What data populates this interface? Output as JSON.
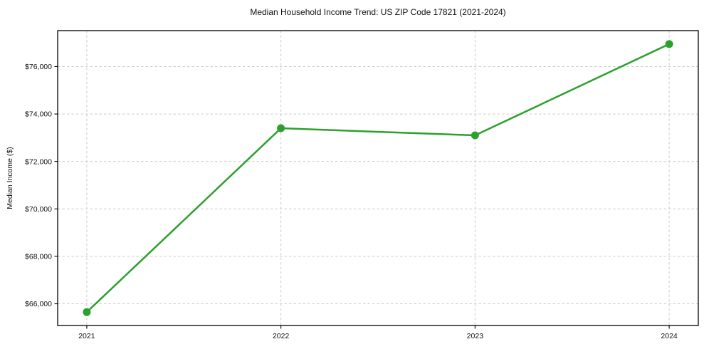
{
  "chart_data": {
    "type": "line",
    "title": "Median Household Income Trend: US ZIP Code 17821 (2021-2024)",
    "xlabel": "",
    "ylabel": "Median Income ($)",
    "series_name": "Median Household Income",
    "x": [
      2021,
      2022,
      2023,
      2024
    ],
    "values": [
      65650,
      73400,
      73100,
      76950
    ],
    "xticks": [
      2021,
      2022,
      2023,
      2024
    ],
    "xtick_labels": [
      "2021",
      "2022",
      "2023",
      "2024"
    ],
    "yticks": [
      66000,
      68000,
      70000,
      72000,
      74000,
      76000
    ],
    "ytick_labels": [
      "$66,000",
      "$68,000",
      "$70,000",
      "$72,000",
      "$74,000",
      "$76,000"
    ],
    "xlim": [
      2020.85,
      2024.15
    ],
    "ylim": [
      65085,
      77515
    ],
    "grid": true,
    "legend_position": "none",
    "line_color": "#2ca02c",
    "marker": "circle",
    "marker_color": "#2ca02c",
    "grid_color": "#cccccc",
    "spine_color": "#000000",
    "text_color": "#111111",
    "background_color": "#ffffff"
  }
}
